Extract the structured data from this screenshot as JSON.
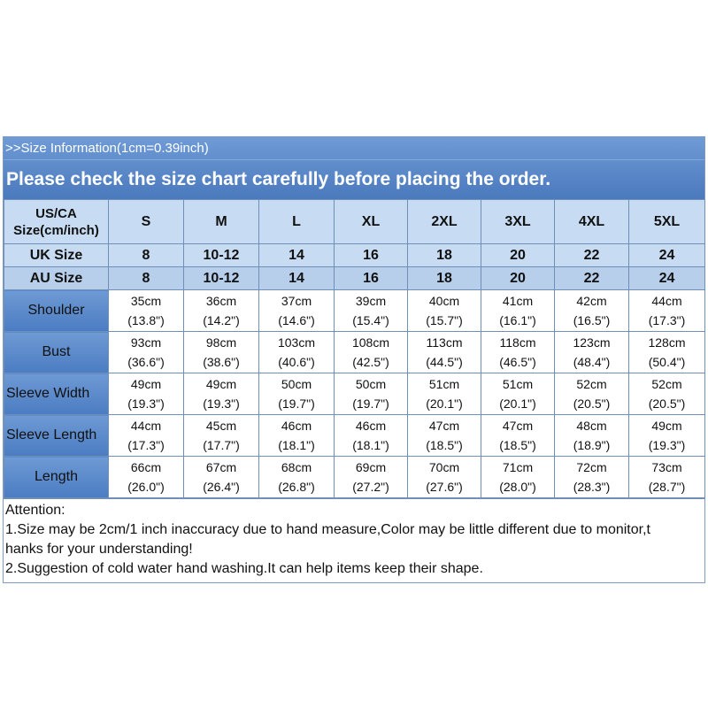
{
  "header": {
    "title": ">>Size Information(1cm=0.39inch)",
    "subtitle": "Please check the size chart carefully before placing the order."
  },
  "table": {
    "corner_line1": "US/CA",
    "corner_line2": "Size(cm/inch)",
    "sizes": [
      "S",
      "M",
      "L",
      "XL",
      "2XL",
      "3XL",
      "4XL",
      "5XL"
    ],
    "uk": {
      "label": "UK Size",
      "values": [
        "8",
        "10-12",
        "14",
        "16",
        "18",
        "20",
        "22",
        "24"
      ]
    },
    "au": {
      "label": "AU Size",
      "values": [
        "8",
        "10-12",
        "14",
        "16",
        "18",
        "20",
        "22",
        "24"
      ]
    },
    "measurements": [
      {
        "label": "Shoulder",
        "cm": [
          "35cm",
          "36cm",
          "37cm",
          "39cm",
          "40cm",
          "41cm",
          "42cm",
          "44cm"
        ],
        "inch": [
          "(13.8\")",
          "(14.2\")",
          "(14.6\")",
          "(15.4\")",
          "(15.7\")",
          "(16.1\")",
          "(16.5\")",
          "(17.3\")"
        ]
      },
      {
        "label": "Bust",
        "cm": [
          "93cm",
          "98cm",
          "103cm",
          "108cm",
          "113cm",
          "118cm",
          "123cm",
          "128cm"
        ],
        "inch": [
          "(36.6\")",
          "(38.6\")",
          "(40.6\")",
          "(42.5\")",
          "(44.5\")",
          "(46.5\")",
          "(48.4\")",
          "(50.4\")"
        ]
      },
      {
        "label": "Sleeve Width",
        "cm": [
          "49cm",
          "49cm",
          "50cm",
          "50cm",
          "51cm",
          "51cm",
          "52cm",
          "52cm"
        ],
        "inch": [
          "(19.3\")",
          "(19.3\")",
          "(19.7\")",
          "(19.7\")",
          "(20.1\")",
          "(20.1\")",
          "(20.5\")",
          "(20.5\")"
        ]
      },
      {
        "label": "Sleeve Length",
        "cm": [
          "44cm",
          "45cm",
          "46cm",
          "46cm",
          "47cm",
          "47cm",
          "48cm",
          "49cm"
        ],
        "inch": [
          "(17.3\")",
          "(17.7\")",
          "(18.1\")",
          "(18.1\")",
          "(18.5\")",
          "(18.5\")",
          "(18.9\")",
          "(19.3\")"
        ]
      },
      {
        "label": "Length",
        "cm": [
          "66cm",
          "67cm",
          "68cm",
          "69cm",
          "70cm",
          "71cm",
          "72cm",
          "73cm"
        ],
        "inch": [
          "(26.0\")",
          "(26.4\")",
          "(26.8\")",
          "(27.2\")",
          "(27.6\")",
          "(28.0\")",
          "(28.3\")",
          "(28.7\")"
        ]
      }
    ]
  },
  "notes": {
    "heading": "Attention:",
    "line1": "1.Size may be 2cm/1 inch inaccuracy due to hand measure,Color may be little different due to monitor,t",
    "line1b": "hanks for your understanding!",
    "line2": "2.Suggestion of cold water hand washing.It can help items keep their shape."
  }
}
